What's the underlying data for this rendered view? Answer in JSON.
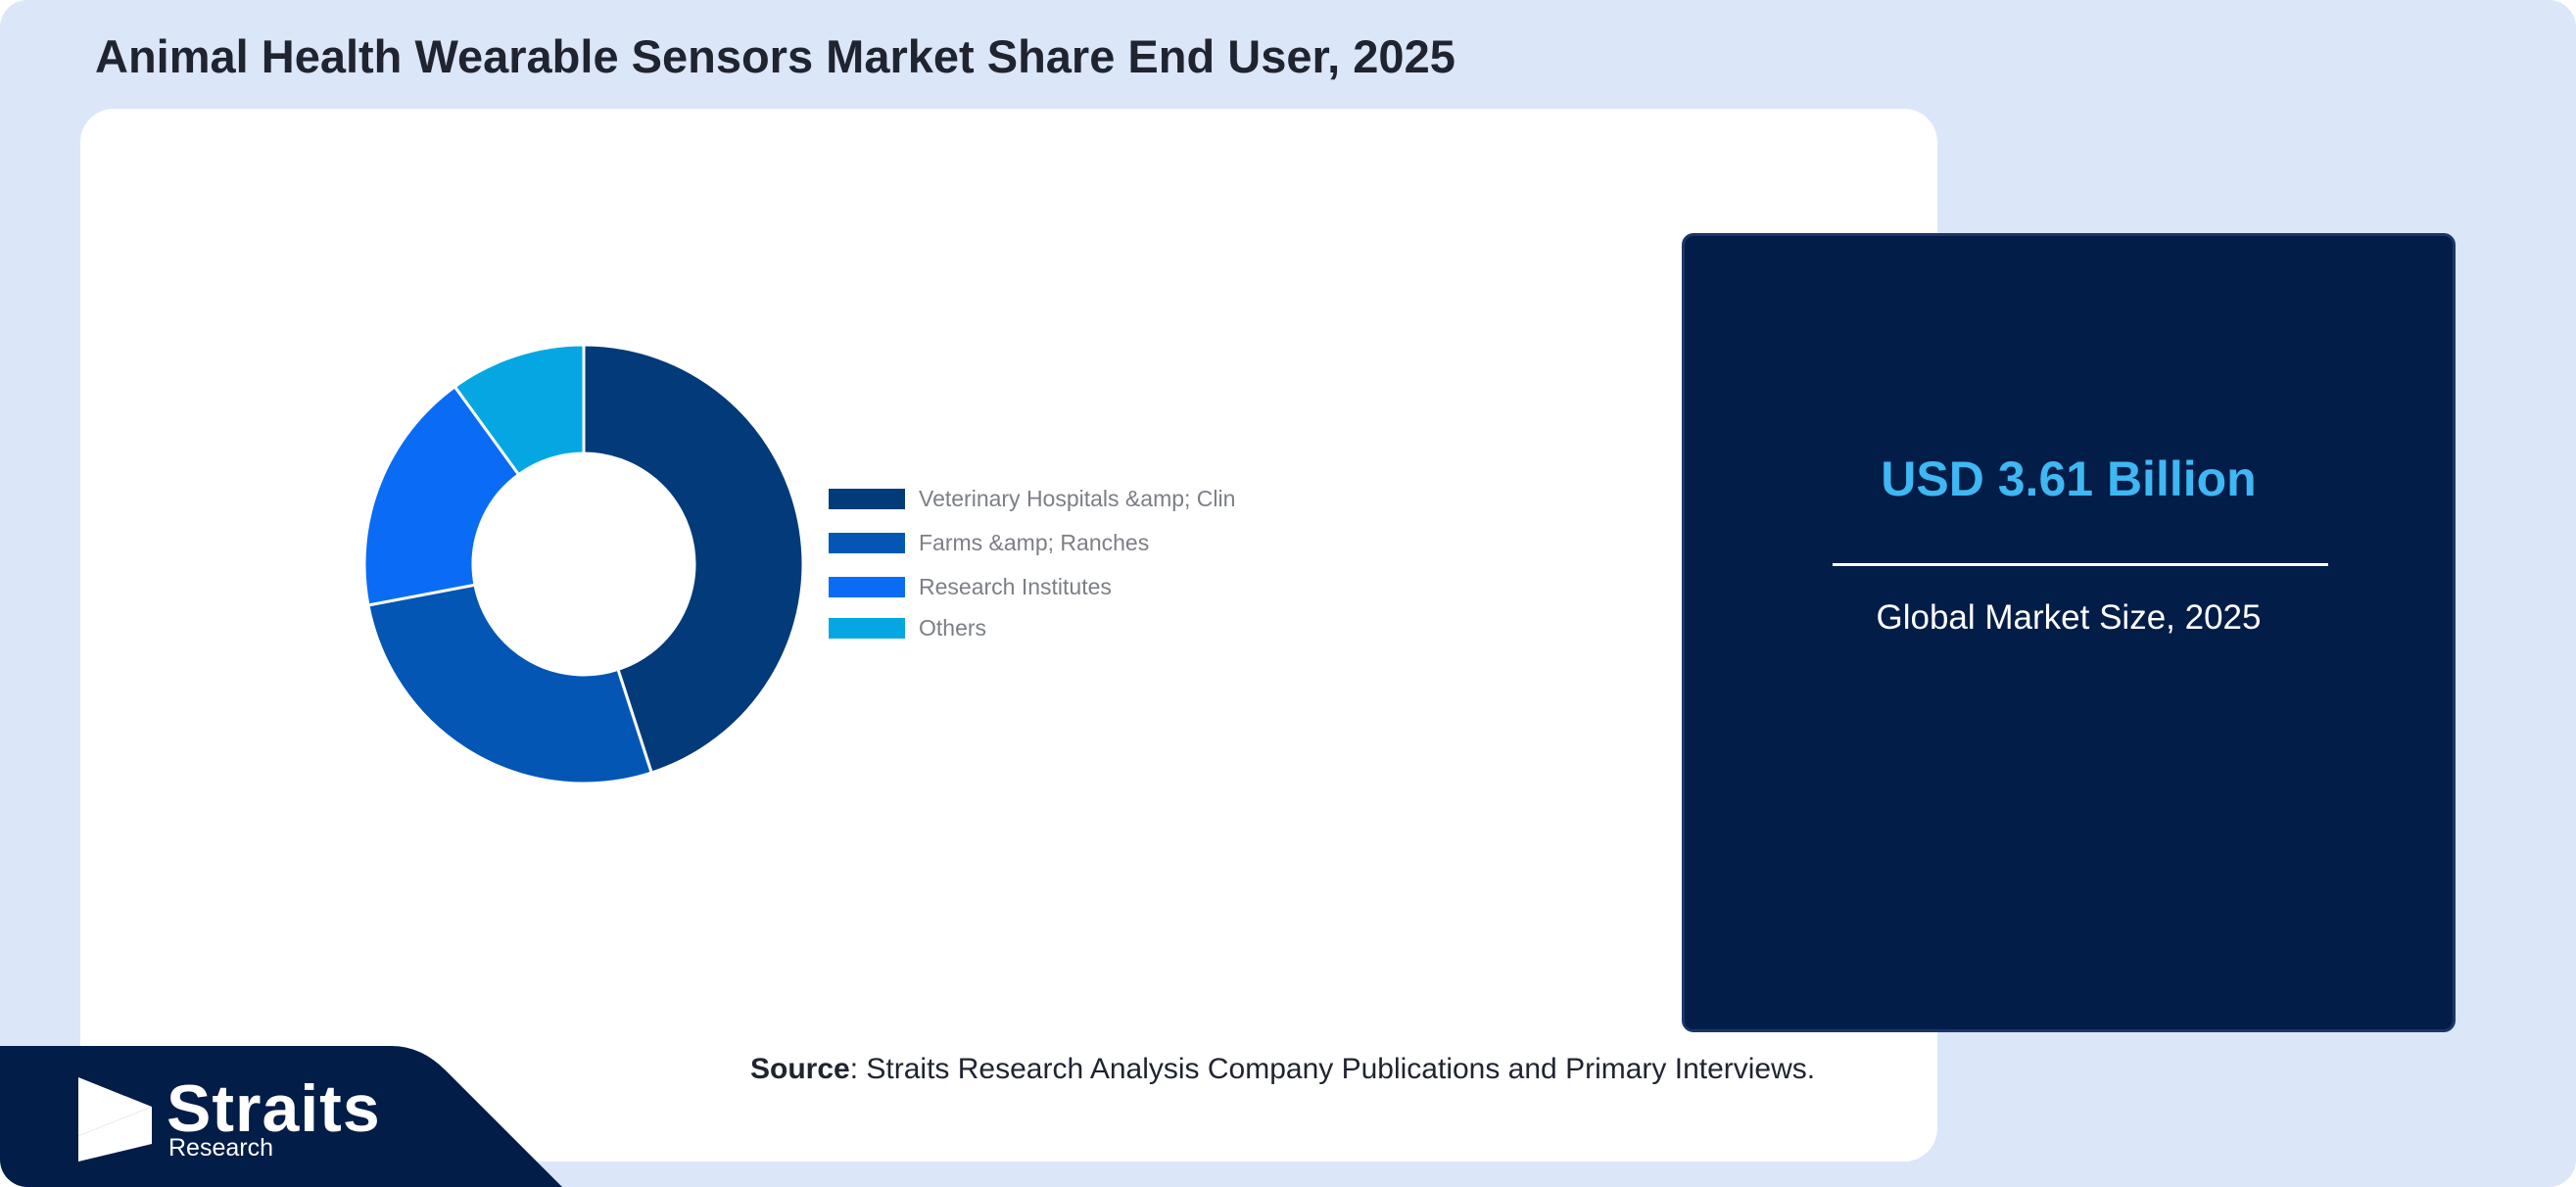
{
  "header": {
    "title": "Animal Health Wearable Sensors Market Share End User, 2025"
  },
  "chart_data": {
    "type": "pie",
    "donut": true,
    "categories": [
      "Veterinary Hospitals &amp; Clin",
      "Farms &amp; Ranches",
      "Research Institutes",
      "Others"
    ],
    "values": [
      45,
      27,
      18,
      10
    ],
    "colors": [
      "#023a7a",
      "#0356b3",
      "#0a6cf5",
      "#05a7e3"
    ],
    "legend_position": "right"
  },
  "market": {
    "value": "USD 3.61 Billion",
    "label": "Global Market Size, 2025"
  },
  "source": {
    "label": "Source",
    "text": ": Straits Research Analysis Company Publications and Primary Interviews."
  },
  "brand": {
    "name": "Straits",
    "sub": "Research",
    "colors": {
      "band": "#021d48",
      "frame": "#dbe6f8"
    }
  }
}
